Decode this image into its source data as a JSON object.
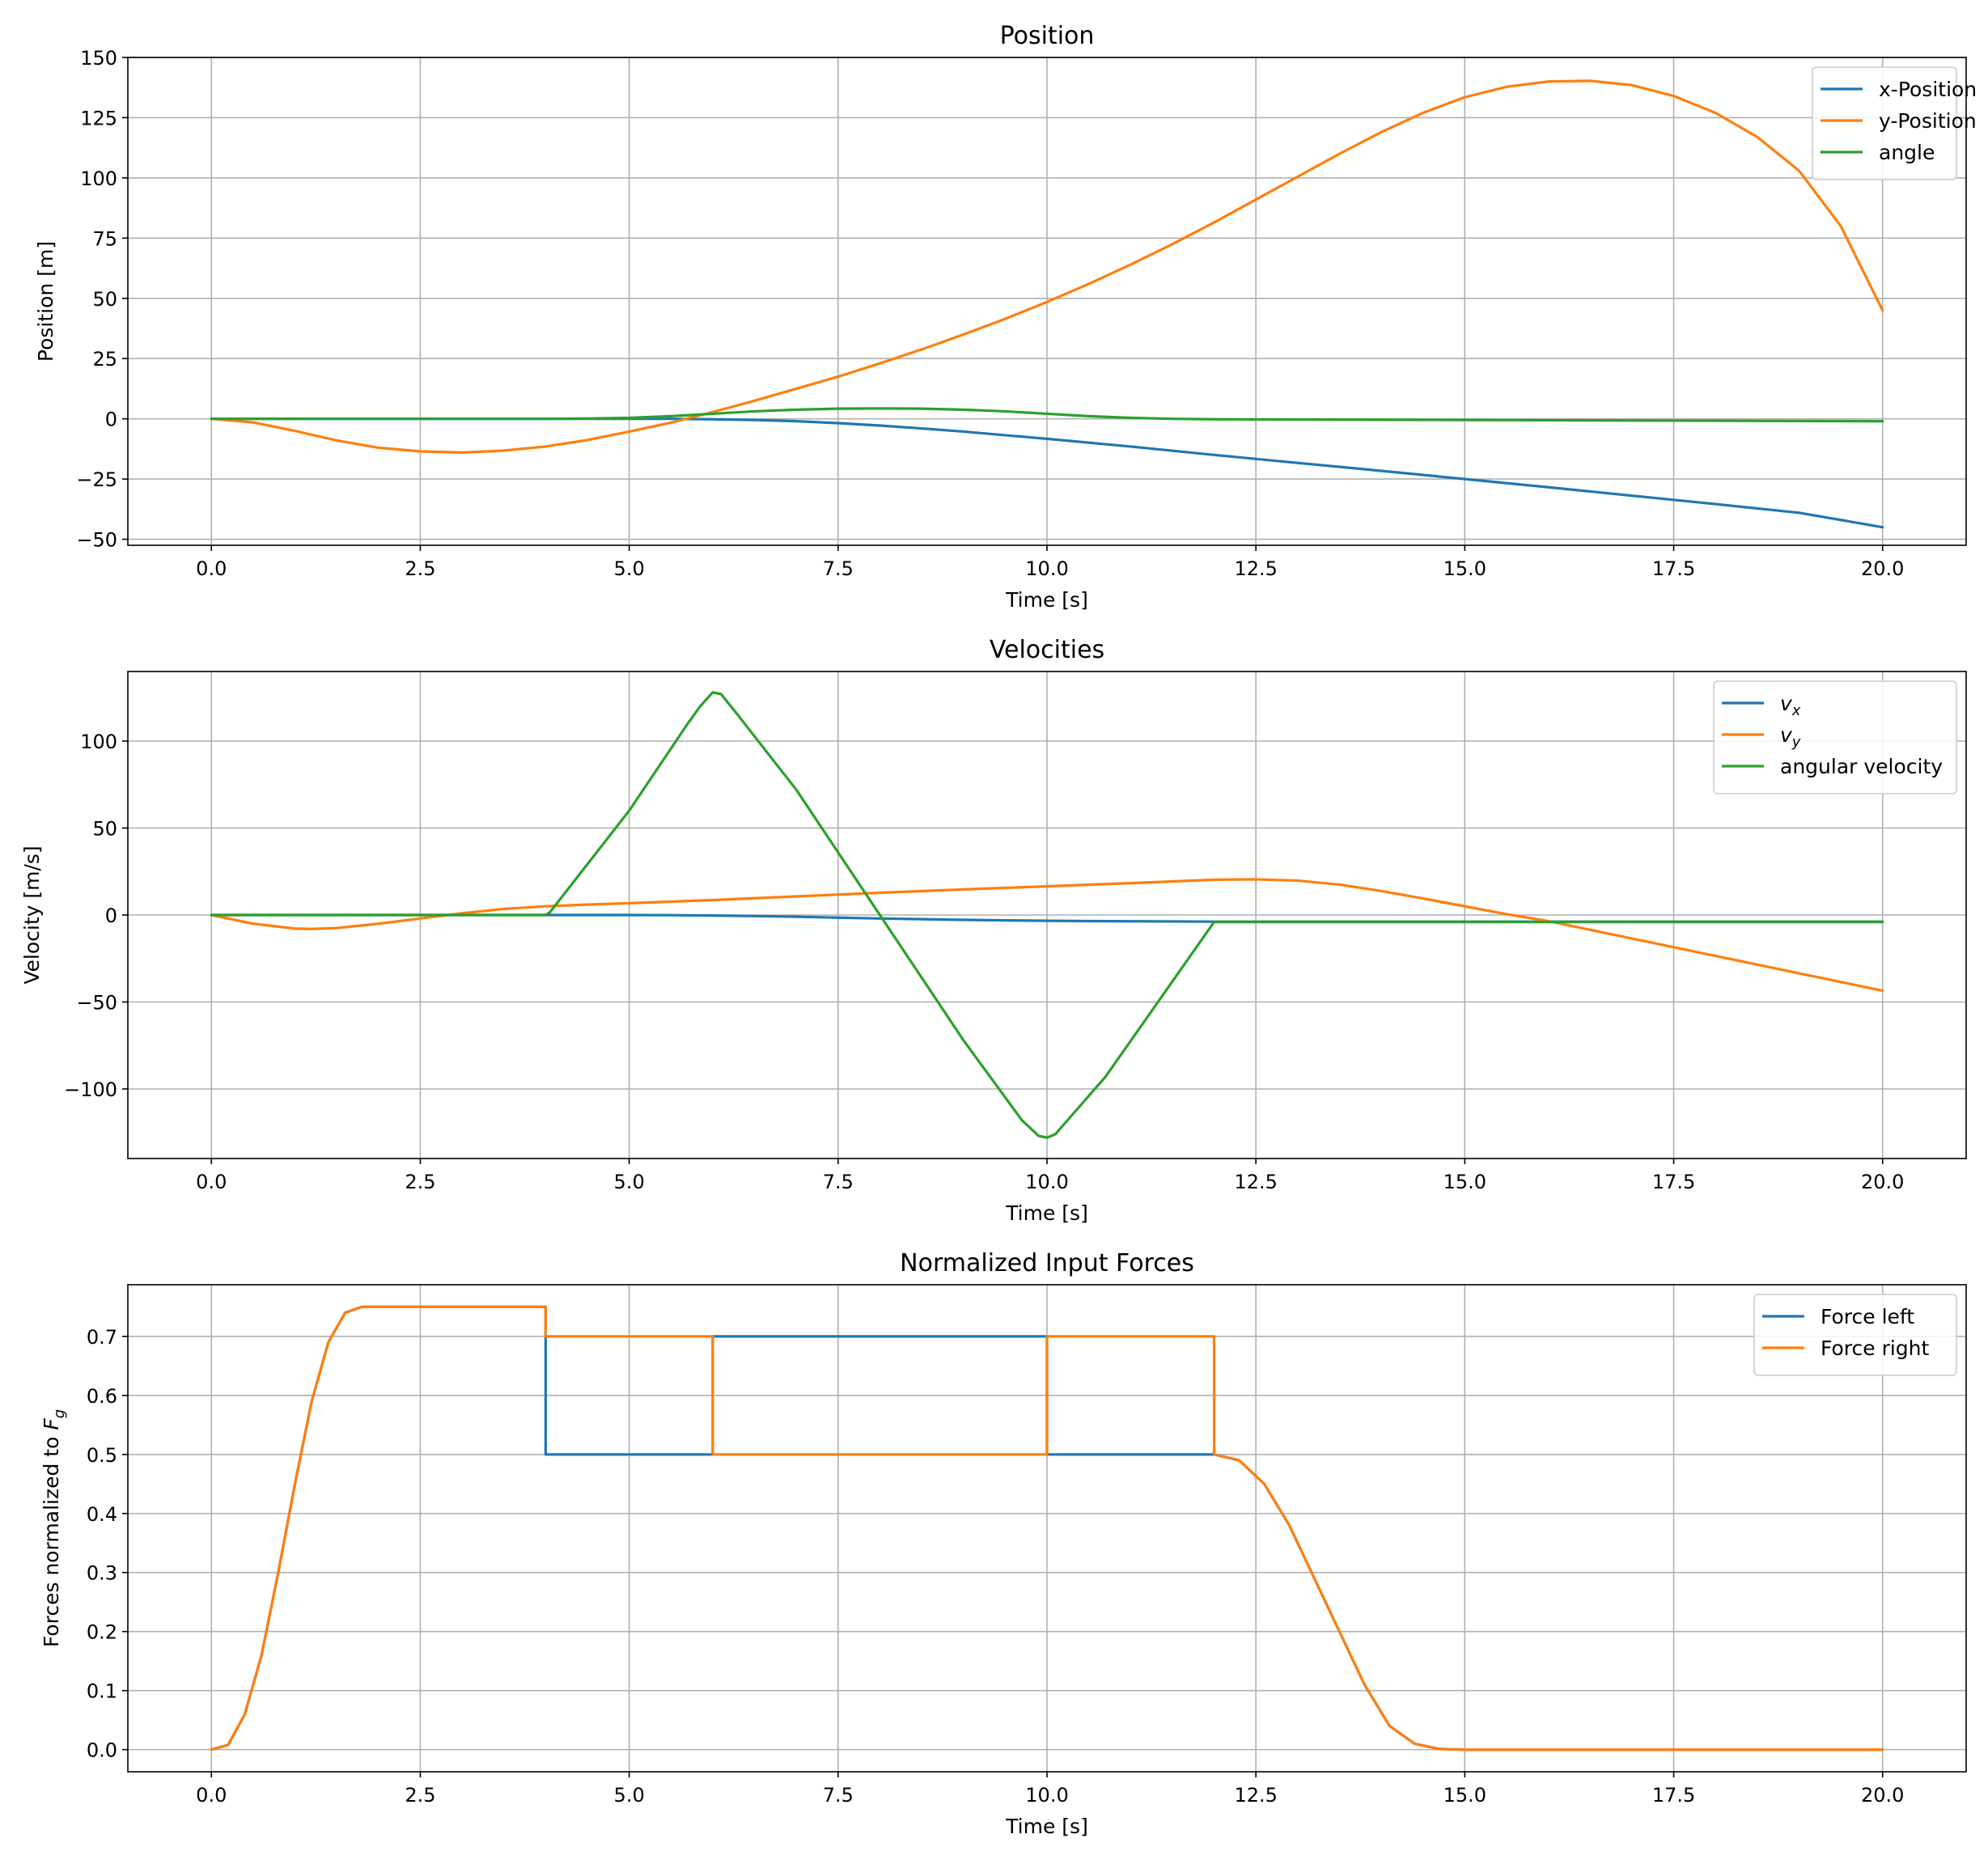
{
  "colors": {
    "blue": "#1f77b4",
    "orange": "#ff7f0e",
    "green": "#2ca02c",
    "grid": "#b0b0b0"
  },
  "chart_data": [
    {
      "type": "line",
      "title": "Position",
      "xlabel": "Time [s]",
      "ylabel": "Position [m]",
      "xlim": [
        -1.0,
        21.0
      ],
      "ylim": [
        -52.5,
        150.0
      ],
      "xticks": [
        0.0,
        2.5,
        5.0,
        7.5,
        10.0,
        12.5,
        15.0,
        17.5,
        20.0
      ],
      "xtick_labels": [
        "0.0",
        "2.5",
        "5.0",
        "7.5",
        "10.0",
        "12.5",
        "15.0",
        "17.5",
        "20.0"
      ],
      "yticks": [
        -50,
        -25,
        0,
        25,
        50,
        75,
        100,
        125,
        150
      ],
      "ytick_labels": [
        "−50",
        "−25",
        "0",
        "25",
        "50",
        "75",
        "100",
        "125",
        "150"
      ],
      "grid": true,
      "legend": "top-right",
      "series": [
        {
          "name": "x-Position",
          "color": "#1f77b4",
          "x": [
            0,
            1,
            2,
            3,
            4,
            5,
            5.5,
            6,
            6.5,
            7,
            7.5,
            8,
            8.5,
            9,
            9.5,
            10,
            11,
            12,
            13,
            14,
            15,
            16,
            17,
            18,
            19,
            20
          ],
          "y": [
            0,
            0,
            0,
            0,
            0,
            0,
            0,
            -0.2,
            -0.5,
            -1,
            -1.8,
            -2.8,
            -4,
            -5.3,
            -6.8,
            -8.3,
            -11.5,
            -15,
            -18.3,
            -21.6,
            -25,
            -28.4,
            -31.9,
            -35.4,
            -39,
            -45
          ]
        },
        {
          "name": "y-Position",
          "color": "#ff7f0e",
          "x": [
            0,
            0.5,
            1,
            1.5,
            2,
            2.5,
            3,
            3.5,
            4,
            4.5,
            5,
            5.5,
            6,
            6.5,
            7,
            7.5,
            8,
            8.5,
            9,
            9.5,
            10,
            10.5,
            11,
            11.5,
            12,
            12.5,
            13,
            13.5,
            14,
            14.5,
            15,
            15.5,
            16,
            16.5,
            17,
            17.5,
            18,
            18.5,
            19,
            19.5,
            20
          ],
          "y": [
            0,
            -1.5,
            -5,
            -9,
            -12,
            -13.5,
            -14,
            -13.2,
            -11.5,
            -8.8,
            -5.3,
            -1.6,
            2.8,
            7.5,
            12.5,
            17.5,
            23,
            28.8,
            35,
            41.5,
            48.5,
            56,
            64,
            72.5,
            81.5,
            91,
            100.5,
            110,
            119,
            127,
            133.5,
            137.8,
            140,
            140.3,
            138.5,
            134,
            127,
            117,
            103,
            80,
            45
          ]
        },
        {
          "name": "angle",
          "color": "#2ca02c",
          "x": [
            0,
            1,
            2,
            3,
            4,
            4.5,
            5,
            5.5,
            6,
            6.5,
            7,
            7.5,
            8,
            8.5,
            9,
            9.5,
            10,
            10.5,
            11,
            11.5,
            12,
            13,
            14,
            15,
            16,
            17,
            18,
            19,
            20
          ],
          "y": [
            0,
            0,
            0,
            0,
            0,
            0.1,
            0.4,
            1.1,
            2.1,
            3.1,
            3.8,
            4.2,
            4.3,
            4.2,
            3.8,
            3.1,
            2.1,
            1.1,
            0.4,
            0,
            -0.2,
            -0.3,
            -0.4,
            -0.5,
            -0.6,
            -0.7,
            -0.8,
            -0.9,
            -1
          ]
        }
      ]
    },
    {
      "type": "line",
      "title": "Velocities",
      "xlabel": "Time [s]",
      "ylabel": "Velocity [m/s]",
      "xlim": [
        -1.0,
        21.0
      ],
      "ylim": [
        -140.0,
        140.0
      ],
      "xticks": [
        0.0,
        2.5,
        5.0,
        7.5,
        10.0,
        12.5,
        15.0,
        17.5,
        20.0
      ],
      "xtick_labels": [
        "0.0",
        "2.5",
        "5.0",
        "7.5",
        "10.0",
        "12.5",
        "15.0",
        "17.5",
        "20.0"
      ],
      "yticks": [
        -100,
        -50,
        0,
        50,
        100
      ],
      "ytick_labels": [
        "−100",
        "−50",
        "0",
        "50",
        "100"
      ],
      "grid": true,
      "legend": "top-right",
      "series": [
        {
          "name": "vx",
          "label_main": "v",
          "label_sub": "x",
          "color": "#1f77b4",
          "x": [
            0,
            5,
            5.5,
            6,
            6.5,
            7,
            7.5,
            8,
            8.5,
            9,
            9.5,
            10,
            10.5,
            11,
            11.5,
            12,
            20
          ],
          "y": [
            0,
            0,
            -0.1,
            -0.3,
            -0.6,
            -1,
            -1.5,
            -2,
            -2.4,
            -2.8,
            -3.1,
            -3.3,
            -3.5,
            -3.6,
            -3.7,
            -3.8,
            -3.8
          ]
        },
        {
          "name": "vy",
          "label_main": "v",
          "label_sub": "y",
          "color": "#ff7f0e",
          "x": [
            0,
            0.5,
            1,
            1.2,
            1.5,
            2,
            2.5,
            3,
            3.5,
            4,
            4.5,
            5,
            6,
            7,
            8,
            9,
            10,
            11,
            12,
            12.5,
            13,
            13.5,
            14,
            14.5,
            15,
            15.5,
            16,
            17,
            18,
            19,
            20
          ],
          "y": [
            0,
            -5,
            -7.8,
            -8,
            -7.5,
            -5,
            -2,
            1,
            3.5,
            5,
            6,
            6.8,
            8.6,
            10.7,
            12.8,
            14.7,
            16.5,
            18.3,
            20.3,
            20.5,
            19.8,
            17.5,
            13.8,
            9.5,
            5,
            0.5,
            -3.5,
            -13.5,
            -23.5,
            -33.5,
            -43.5
          ]
        },
        {
          "name": "angular velocity",
          "color": "#2ca02c",
          "x": [
            0,
            4,
            4.05,
            5,
            5.7,
            5.85,
            6,
            6.1,
            6.3,
            7,
            8,
            9,
            9.7,
            9.9,
            10,
            10.1,
            10.3,
            10.7,
            12,
            20
          ],
          "y": [
            0,
            0,
            1.5,
            60,
            110,
            120,
            128,
            127,
            115,
            72,
            0,
            -72,
            -118,
            -127,
            -128,
            -126,
            -115,
            -93,
            -4,
            -4
          ]
        }
      ]
    },
    {
      "type": "line",
      "title": "Normalized Input Forces",
      "xlabel": "Time [s]",
      "ylabel_main": "Forces normalized to ",
      "ylabel_var": "F",
      "ylabel_sub": "g",
      "xlim": [
        -1.0,
        21.0
      ],
      "ylim": [
        -0.0375,
        0.7875
      ],
      "xticks": [
        0.0,
        2.5,
        5.0,
        7.5,
        10.0,
        12.5,
        15.0,
        17.5,
        20.0
      ],
      "xtick_labels": [
        "0.0",
        "2.5",
        "5.0",
        "7.5",
        "10.0",
        "12.5",
        "15.0",
        "17.5",
        "20.0"
      ],
      "yticks": [
        0.0,
        0.1,
        0.2,
        0.3,
        0.4,
        0.5,
        0.6,
        0.7
      ],
      "ytick_labels": [
        "0.0",
        "0.1",
        "0.2",
        "0.3",
        "0.4",
        "0.5",
        "0.6",
        "0.7"
      ],
      "grid": true,
      "legend": "top-right",
      "series": [
        {
          "name": "Force left",
          "color": "#1f77b4",
          "x": [
            0,
            0.2,
            0.4,
            0.6,
            0.8,
            1.0,
            1.2,
            1.4,
            1.6,
            1.8,
            2.0,
            4,
            4,
            6,
            6,
            10,
            10,
            12,
            12,
            12.3,
            12.6,
            12.9,
            13.2,
            13.5,
            13.8,
            14.1,
            14.4,
            14.7,
            15,
            20
          ],
          "y": [
            0,
            0.008,
            0.06,
            0.16,
            0.3,
            0.45,
            0.59,
            0.69,
            0.74,
            0.75,
            0.75,
            0.75,
            0.5,
            0.5,
            0.7,
            0.7,
            0.5,
            0.5,
            0.5,
            0.49,
            0.45,
            0.38,
            0.29,
            0.2,
            0.11,
            0.04,
            0.01,
            0.001,
            0,
            0
          ]
        },
        {
          "name": "Force right",
          "color": "#ff7f0e",
          "x": [
            0,
            0.2,
            0.4,
            0.6,
            0.8,
            1.0,
            1.2,
            1.4,
            1.6,
            1.8,
            2.0,
            4,
            4,
            6,
            6,
            10,
            10,
            12,
            12,
            12.3,
            12.6,
            12.9,
            13.2,
            13.5,
            13.8,
            14.1,
            14.4,
            14.7,
            15,
            20
          ],
          "y": [
            0,
            0.008,
            0.06,
            0.16,
            0.3,
            0.45,
            0.59,
            0.69,
            0.74,
            0.75,
            0.75,
            0.75,
            0.7,
            0.7,
            0.5,
            0.5,
            0.7,
            0.7,
            0.5,
            0.49,
            0.45,
            0.38,
            0.29,
            0.2,
            0.11,
            0.04,
            0.01,
            0.001,
            0,
            0
          ]
        }
      ]
    }
  ]
}
